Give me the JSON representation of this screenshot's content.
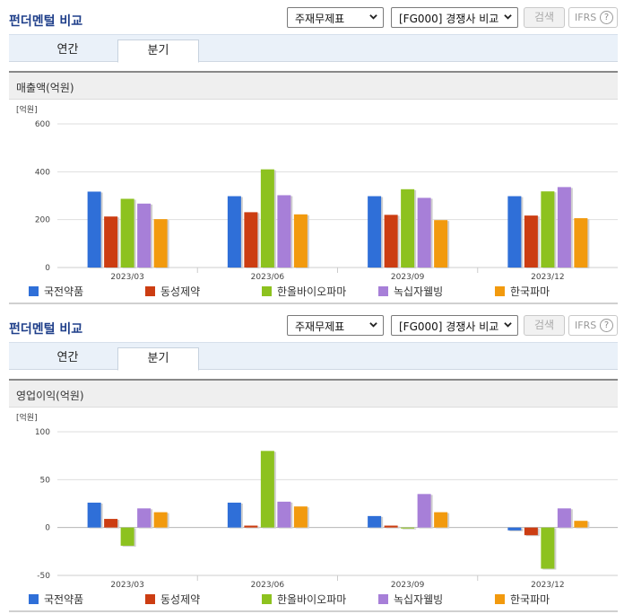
{
  "sections": [
    {
      "title": "펀더멘털 비교",
      "select1": "주재무제표",
      "select2": "[FG000] 경쟁사 비교",
      "search_label": "검색",
      "ifrs_label": "IFRS",
      "help_glyph": "?",
      "tabs": [
        {
          "label": "연간"
        },
        {
          "label": "분기"
        }
      ],
      "active_tab": 1,
      "panel_title": "매출액(억원)",
      "chart_data": {
        "type": "bar",
        "unit_label": "[억원]",
        "categories": [
          "2023/03",
          "2023/06",
          "2023/09",
          "2023/12"
        ],
        "ylim": [
          0,
          600
        ],
        "yticks": [
          0,
          200,
          400,
          600
        ],
        "grid": true,
        "legend_position": "bottom",
        "series": [
          {
            "name": "국전약품",
            "color": "#2f6fd8",
            "values": [
              317,
              298,
              298,
              298
            ]
          },
          {
            "name": "동성제약",
            "color": "#cc3d12",
            "values": [
              213,
              231,
              220,
              217
            ]
          },
          {
            "name": "한올바이오파마",
            "color": "#8dc21f",
            "values": [
              287,
              410,
              327,
              318
            ]
          },
          {
            "name": "녹십자웰빙",
            "color": "#a77fd8",
            "values": [
              267,
              302,
              291,
              336
            ]
          },
          {
            "name": "한국파마",
            "color": "#f29a0e",
            "values": [
              202,
              222,
              198,
              206
            ]
          }
        ]
      }
    },
    {
      "title": "펀더멘털 비교",
      "select1": "주재무제표",
      "select2": "[FG000] 경쟁사 비교",
      "search_label": "검색",
      "ifrs_label": "IFRS",
      "help_glyph": "?",
      "tabs": [
        {
          "label": "연간"
        },
        {
          "label": "분기"
        }
      ],
      "active_tab": 1,
      "panel_title": "영업이익(억원)",
      "chart_data": {
        "type": "bar",
        "unit_label": "[억원]",
        "categories": [
          "2023/03",
          "2023/06",
          "2023/09",
          "2023/12"
        ],
        "ylim": [
          -50,
          100
        ],
        "yticks": [
          -50,
          0,
          50,
          100
        ],
        "grid": true,
        "legend_position": "bottom",
        "series": [
          {
            "name": "국전약품",
            "color": "#2f6fd8",
            "values": [
              26,
              26,
              12,
              -3
            ]
          },
          {
            "name": "동성제약",
            "color": "#cc3d12",
            "values": [
              9,
              2,
              2,
              -8
            ]
          },
          {
            "name": "한올바이오파마",
            "color": "#8dc21f",
            "values": [
              -19,
              80,
              -1,
              -43
            ]
          },
          {
            "name": "녹십자웰빙",
            "color": "#a77fd8",
            "values": [
              20,
              27,
              35,
              20
            ]
          },
          {
            "name": "한국파마",
            "color": "#f29a0e",
            "values": [
              16,
              22,
              16,
              7
            ]
          }
        ]
      }
    }
  ]
}
